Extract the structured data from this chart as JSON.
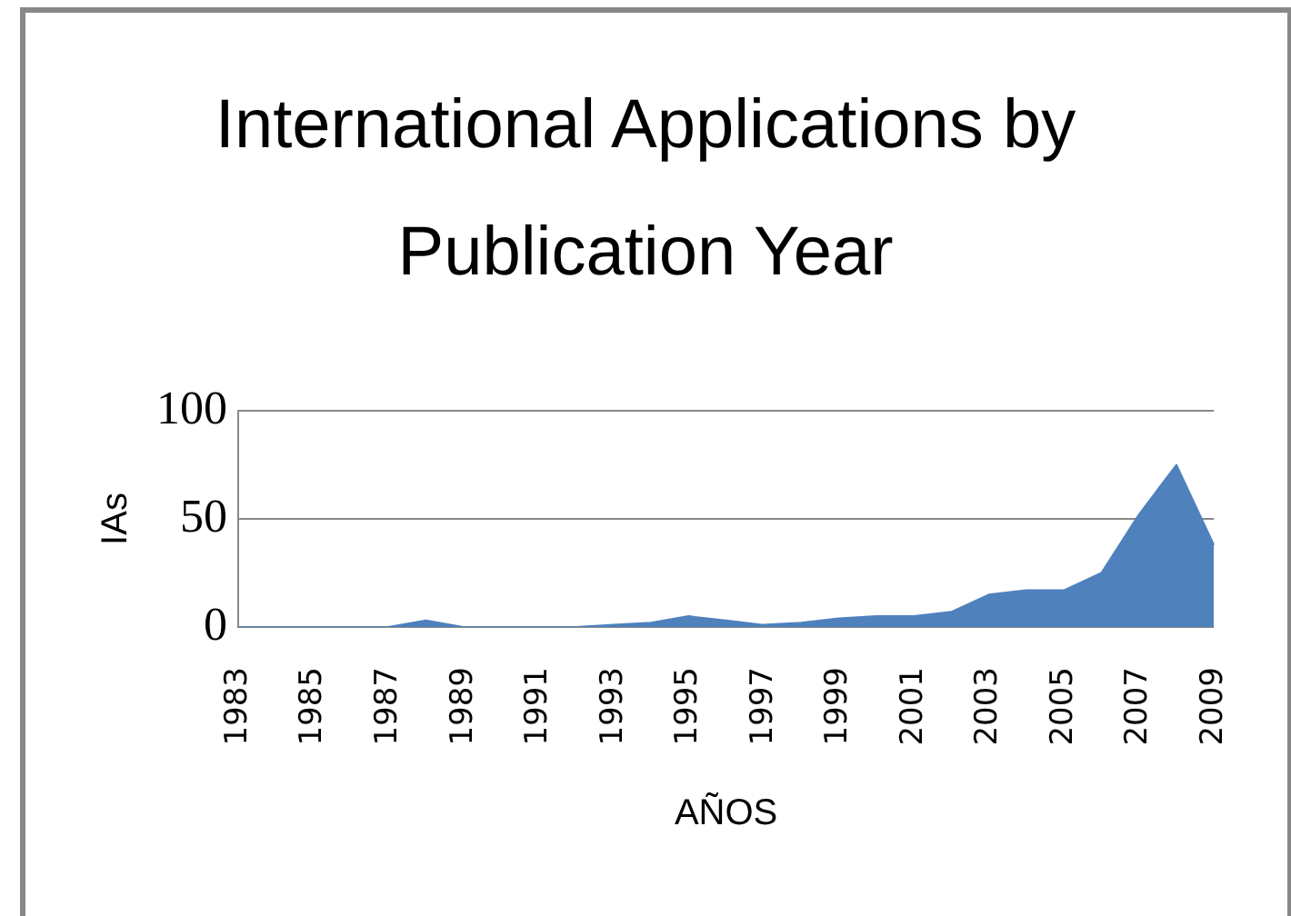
{
  "chart_data": {
    "type": "area",
    "title": "International Applications by Publication Year",
    "xlabel": "AÑOS",
    "ylabel": "IAs",
    "categories": [
      "1983",
      null,
      "1985",
      null,
      "1987",
      null,
      "1989",
      null,
      "1991",
      null,
      "1993",
      null,
      "1995",
      null,
      "1997",
      null,
      "1999",
      null,
      "2001",
      null,
      "2003",
      null,
      "2005",
      null,
      "2007",
      null,
      "2009"
    ],
    "values": [
      0,
      0,
      0,
      0,
      0,
      3,
      0,
      0,
      0,
      0,
      1,
      2,
      5,
      3,
      1,
      2,
      4,
      5,
      5,
      7,
      15,
      17,
      17,
      25,
      52,
      75,
      38
    ],
    "color": "#4f81bd",
    "ylim": [
      0,
      100
    ],
    "yticks": [
      0,
      50,
      100
    ],
    "grid": "y",
    "legend": false
  }
}
